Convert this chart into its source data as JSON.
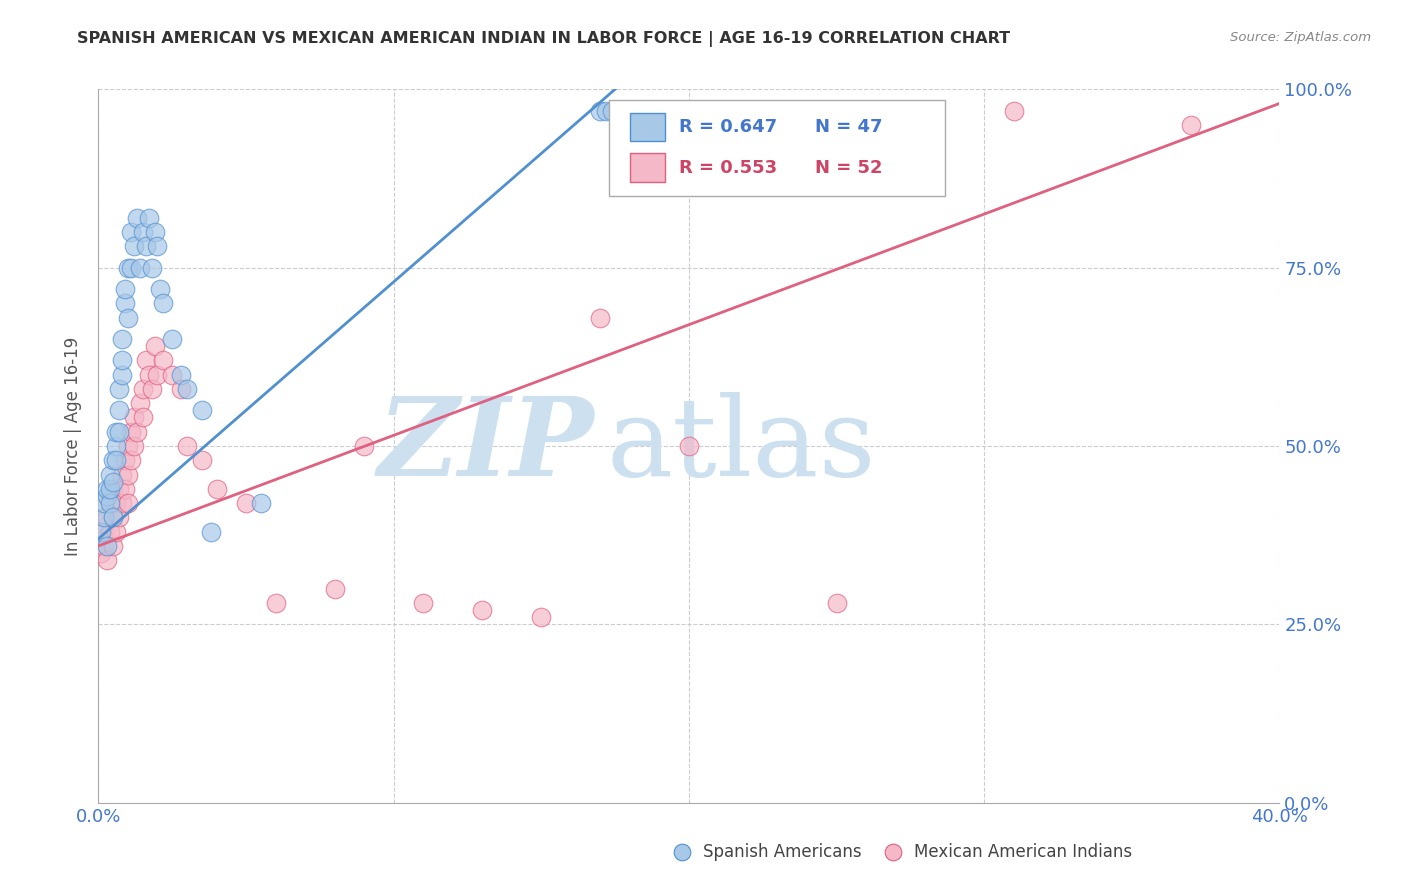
{
  "title": "SPANISH AMERICAN VS MEXICAN AMERICAN INDIAN IN LABOR FORCE | AGE 16-19 CORRELATION CHART",
  "source": "Source: ZipAtlas.com",
  "ylabel": "In Labor Force | Age 16-19",
  "ytick_labels": [
    "0.0%",
    "25.0%",
    "50.0%",
    "75.0%",
    "100.0%"
  ],
  "legend_blue_label": "Spanish Americans",
  "legend_pink_label": "Mexican American Indians",
  "r_blue": 0.647,
  "n_blue": 47,
  "r_pink": 0.553,
  "n_pink": 52,
  "blue_color": "#a8c8e8",
  "pink_color": "#f4b8c8",
  "line_blue": "#5090d0",
  "line_pink": "#e06080",
  "text_blue": "#4477cc",
  "text_pink": "#cc4466",
  "text_dark": "#333333",
  "background": "#ffffff",
  "grid_color": "#cccccc",
  "xlim": [
    0.0,
    0.4
  ],
  "ylim": [
    0.0,
    1.0
  ],
  "blue_scatter_x": [
    0.001,
    0.002,
    0.002,
    0.003,
    0.003,
    0.003,
    0.004,
    0.004,
    0.004,
    0.005,
    0.005,
    0.005,
    0.006,
    0.006,
    0.006,
    0.007,
    0.007,
    0.007,
    0.008,
    0.008,
    0.008,
    0.009,
    0.009,
    0.01,
    0.01,
    0.011,
    0.011,
    0.012,
    0.013,
    0.014,
    0.015,
    0.016,
    0.017,
    0.018,
    0.019,
    0.02,
    0.021,
    0.022,
    0.025,
    0.028,
    0.03,
    0.035,
    0.038,
    0.055,
    0.17,
    0.172,
    0.174
  ],
  "blue_scatter_y": [
    0.38,
    0.4,
    0.42,
    0.36,
    0.43,
    0.44,
    0.42,
    0.44,
    0.46,
    0.4,
    0.45,
    0.48,
    0.5,
    0.48,
    0.52,
    0.55,
    0.52,
    0.58,
    0.6,
    0.62,
    0.65,
    0.7,
    0.72,
    0.68,
    0.75,
    0.8,
    0.75,
    0.78,
    0.82,
    0.75,
    0.8,
    0.78,
    0.82,
    0.75,
    0.8,
    0.78,
    0.72,
    0.7,
    0.65,
    0.6,
    0.58,
    0.55,
    0.38,
    0.42,
    0.97,
    0.97,
    0.97
  ],
  "pink_scatter_x": [
    0.001,
    0.002,
    0.002,
    0.003,
    0.003,
    0.004,
    0.004,
    0.005,
    0.005,
    0.005,
    0.006,
    0.006,
    0.007,
    0.007,
    0.008,
    0.008,
    0.009,
    0.009,
    0.01,
    0.01,
    0.01,
    0.011,
    0.011,
    0.012,
    0.012,
    0.013,
    0.014,
    0.015,
    0.015,
    0.016,
    0.017,
    0.018,
    0.019,
    0.02,
    0.022,
    0.025,
    0.028,
    0.03,
    0.035,
    0.04,
    0.05,
    0.06,
    0.08,
    0.09,
    0.11,
    0.13,
    0.15,
    0.17,
    0.2,
    0.25,
    0.31,
    0.37
  ],
  "pink_scatter_y": [
    0.35,
    0.36,
    0.38,
    0.34,
    0.4,
    0.38,
    0.42,
    0.36,
    0.4,
    0.44,
    0.38,
    0.42,
    0.4,
    0.44,
    0.42,
    0.46,
    0.44,
    0.48,
    0.42,
    0.46,
    0.5,
    0.48,
    0.52,
    0.5,
    0.54,
    0.52,
    0.56,
    0.54,
    0.58,
    0.62,
    0.6,
    0.58,
    0.64,
    0.6,
    0.62,
    0.6,
    0.58,
    0.5,
    0.48,
    0.44,
    0.42,
    0.28,
    0.3,
    0.5,
    0.28,
    0.27,
    0.26,
    0.68,
    0.5,
    0.28,
    0.97,
    0.95
  ],
  "watermark_zip": "ZIP",
  "watermark_atlas": "atlas",
  "watermark_color": "#cce0f0",
  "watermark_fontsize": 80
}
